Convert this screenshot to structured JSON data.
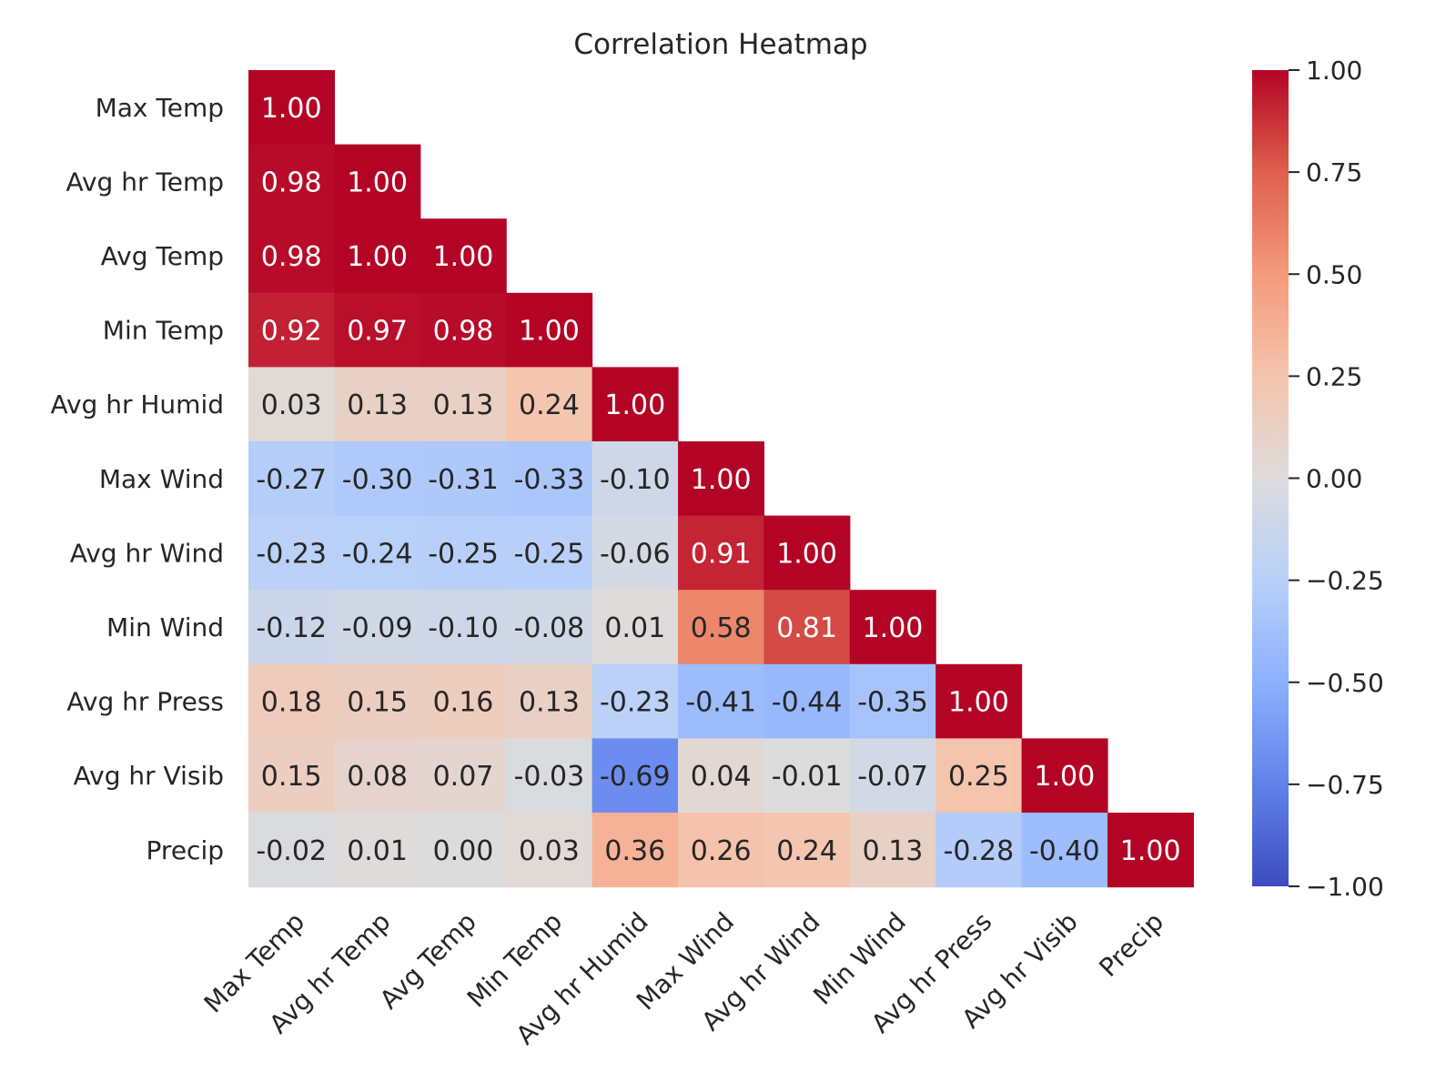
{
  "chart_data": {
    "type": "heatmap",
    "title": "Correlation Heatmap",
    "labels": [
      "Max Temp",
      "Avg hr Temp",
      "Avg Temp",
      "Min Temp",
      "Avg hr Humid",
      "Max Wind",
      "Avg hr Wind",
      "Min Wind",
      "Avg hr Press",
      "Avg hr Visib",
      "Precip"
    ],
    "mask": "upper-triangle",
    "values": [
      [
        1.0
      ],
      [
        0.98,
        1.0
      ],
      [
        0.98,
        1.0,
        1.0
      ],
      [
        0.92,
        0.97,
        0.98,
        1.0
      ],
      [
        0.03,
        0.13,
        0.13,
        0.24,
        1.0
      ],
      [
        -0.27,
        -0.3,
        -0.31,
        -0.33,
        -0.1,
        1.0
      ],
      [
        -0.23,
        -0.24,
        -0.25,
        -0.25,
        -0.06,
        0.91,
        1.0
      ],
      [
        -0.12,
        -0.09,
        -0.1,
        -0.08,
        0.01,
        0.58,
        0.81,
        1.0
      ],
      [
        0.18,
        0.15,
        0.16,
        0.13,
        -0.23,
        -0.41,
        -0.44,
        -0.35,
        1.0
      ],
      [
        0.15,
        0.08,
        0.07,
        -0.03,
        -0.69,
        0.04,
        -0.01,
        -0.07,
        0.25,
        1.0
      ],
      [
        -0.02,
        0.01,
        0.0,
        0.03,
        0.36,
        0.26,
        0.24,
        0.13,
        -0.28,
        -0.4,
        1.0
      ]
    ],
    "colormap": "coolwarm",
    "vmin": -1.0,
    "vmax": 1.0,
    "colorbar_ticks": [
      "1.00",
      "0.75",
      "0.50",
      "0.25",
      "0.00",
      "−0.25",
      "−0.50",
      "−0.75",
      "−1.00"
    ],
    "colorbar_tick_values": [
      1.0,
      0.75,
      0.5,
      0.25,
      0.0,
      -0.25,
      -0.5,
      -0.75,
      -1.0
    ],
    "grid": false
  }
}
